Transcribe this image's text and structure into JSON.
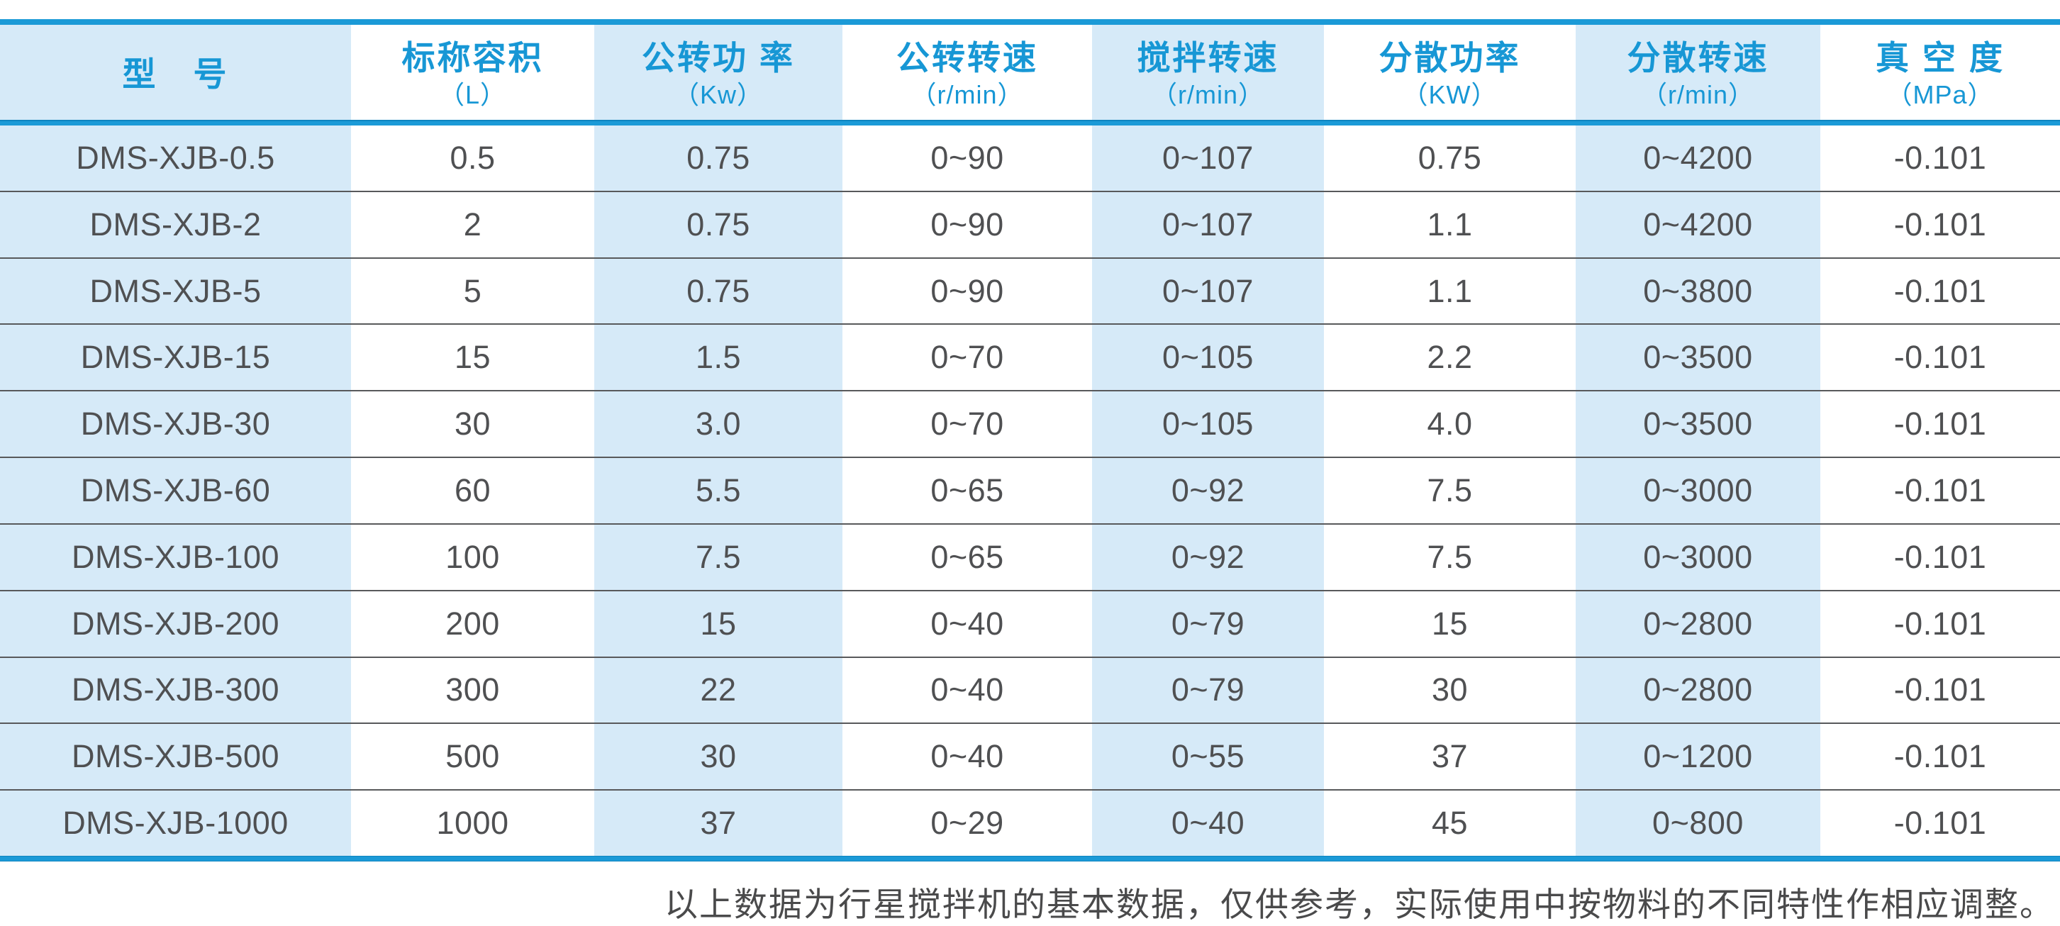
{
  "colors": {
    "accent_blue": "#1b9ad7",
    "stripe_blue": "#d6eaf8",
    "header_blue": "#1797d5",
    "text_dark": "#4f5052",
    "line_gray": "#58595b",
    "note_gray": "#4a4a4b"
  },
  "table": {
    "columns": [
      {
        "title": "型　号",
        "unit": ""
      },
      {
        "title": "标称容积",
        "unit": "（L）"
      },
      {
        "title": "公转功 率",
        "unit": "（Kw）"
      },
      {
        "title": "公转转速",
        "unit": "（r/min）"
      },
      {
        "title": "搅拌转速",
        "unit": "（r/min）"
      },
      {
        "title": "分散功率",
        "unit": "（KW）"
      },
      {
        "title": "分散转速",
        "unit": "（r/min）"
      },
      {
        "title": "真 空 度",
        "unit": "（MPa）"
      }
    ],
    "rows": [
      [
        "DMS-XJB-0.5",
        "0.5",
        "0.75",
        "0~90",
        "0~107",
        "0.75",
        "0~4200",
        "-0.101"
      ],
      [
        "DMS-XJB-2",
        "2",
        "0.75",
        "0~90",
        "0~107",
        "1.1",
        "0~4200",
        "-0.101"
      ],
      [
        "DMS-XJB-5",
        "5",
        "0.75",
        "0~90",
        "0~107",
        "1.1",
        "0~3800",
        "-0.101"
      ],
      [
        "DMS-XJB-15",
        "15",
        "1.5",
        "0~70",
        "0~105",
        "2.2",
        "0~3500",
        "-0.101"
      ],
      [
        "DMS-XJB-30",
        "30",
        "3.0",
        "0~70",
        "0~105",
        "4.0",
        "0~3500",
        "-0.101"
      ],
      [
        "DMS-XJB-60",
        "60",
        "5.5",
        "0~65",
        "0~92",
        "7.5",
        "0~3000",
        "-0.101"
      ],
      [
        "DMS-XJB-100",
        "100",
        "7.5",
        "0~65",
        "0~92",
        "7.5",
        "0~3000",
        "-0.101"
      ],
      [
        "DMS-XJB-200",
        "200",
        "15",
        "0~40",
        "0~79",
        "15",
        "0~2800",
        "-0.101"
      ],
      [
        "DMS-XJB-300",
        "300",
        "22",
        "0~40",
        "0~79",
        "30",
        "0~2800",
        "-0.101"
      ],
      [
        "DMS-XJB-500",
        "500",
        "30",
        "0~40",
        "0~55",
        "37",
        "0~1200",
        "-0.101"
      ],
      [
        "DMS-XJB-1000",
        "1000",
        "37",
        "0~29",
        "0~40",
        "45",
        "0~800",
        "-0.101"
      ]
    ]
  },
  "footer": {
    "note": "以上数据为行星搅拌机的基本数据，仅供参考，实际使用中按物料的不同特性作相应调整。"
  }
}
